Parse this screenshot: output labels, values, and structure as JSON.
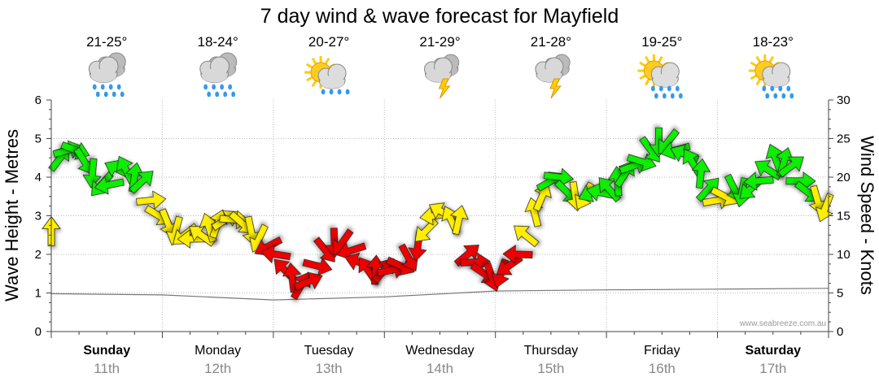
{
  "chart_data": {
    "type": "line",
    "title": "7 day wind & wave forecast for Mayfield",
    "ylabel": "Wave Height - Metres",
    "y2label": "Wind Speed - Knots",
    "ylim": [
      0,
      6
    ],
    "y2lim": [
      0,
      30
    ],
    "yticks": [
      "0",
      "1",
      "2",
      "3",
      "4",
      "5",
      "6"
    ],
    "y2ticks": [
      "0",
      "5",
      "10",
      "15",
      "20",
      "25",
      "30"
    ],
    "credit": "www.seabreeze.com.au",
    "days": [
      {
        "name": "Sunday",
        "date": "11th",
        "temp": "21-25°",
        "icon": "rain-cloud-icon",
        "bold": true
      },
      {
        "name": "Monday",
        "date": "12th",
        "temp": "18-24°",
        "icon": "rain-cloud-icon",
        "bold": false
      },
      {
        "name": "Tuesday",
        "date": "13th",
        "temp": "20-27°",
        "icon": "sun-cloud-shower-icon",
        "bold": false
      },
      {
        "name": "Wednesday",
        "date": "14th",
        "temp": "21-29°",
        "icon": "thunderstorm-icon",
        "bold": false
      },
      {
        "name": "Thursday",
        "date": "15th",
        "temp": "21-28°",
        "icon": "thunderstorm-icon",
        "bold": false
      },
      {
        "name": "Friday",
        "date": "16th",
        "temp": "19-25°",
        "icon": "sun-cloud-rain-icon",
        "bold": false
      },
      {
        "name": "Saturday",
        "date": "17th",
        "temp": "18-23°",
        "icon": "sun-cloud-rain-icon",
        "bold": true
      }
    ],
    "series": [
      {
        "name": "Wind Speed (knots)",
        "x_day": [
          0.0,
          0.08,
          0.15,
          0.22,
          0.3,
          0.37,
          0.45,
          0.52,
          0.6,
          0.67,
          0.75,
          0.82,
          0.9,
          0.97,
          1.05,
          1.12,
          1.2,
          1.27,
          1.35,
          1.42,
          1.5,
          1.57,
          1.65,
          1.72,
          1.8,
          1.87,
          1.95,
          2.02,
          2.1,
          2.17,
          2.25,
          2.32,
          2.4,
          2.47,
          2.55,
          2.62,
          2.7,
          2.77,
          2.85,
          2.92,
          3.0,
          3.07,
          3.15,
          3.22,
          3.3,
          3.37,
          3.45,
          3.52,
          3.6,
          3.67,
          3.75,
          3.82,
          3.9,
          3.97,
          4.05,
          4.12,
          4.2,
          4.27,
          4.35,
          4.42,
          4.5,
          4.57,
          4.65,
          4.72,
          4.8,
          4.87,
          4.95,
          5.02,
          5.1,
          5.17,
          5.25,
          5.32,
          5.4,
          5.47,
          5.55,
          5.62,
          5.7,
          5.77,
          5.85,
          5.92,
          6.0,
          6.07,
          6.15,
          6.22,
          6.3,
          6.37,
          6.45,
          6.52,
          6.6,
          6.67,
          6.75,
          6.82,
          6.9,
          6.97
        ],
        "knots": [
          13,
          22.5,
          23.5,
          23.5,
          22,
          20.5,
          19,
          19,
          21,
          21,
          20,
          19.5,
          17,
          15,
          14,
          13,
          12.5,
          12,
          12.5,
          13.5,
          14,
          14.5,
          14.5,
          14,
          13,
          12,
          11,
          10,
          8,
          7,
          6,
          6.5,
          8.5,
          10.5,
          11.5,
          11.5,
          10.5,
          9,
          8,
          8,
          8,
          8,
          8.5,
          9.5,
          11,
          13,
          15,
          15.5,
          14.5,
          14.5,
          10,
          9,
          7.5,
          7,
          7.5,
          8.5,
          10,
          12.5,
          15.5,
          17.5,
          19.5,
          20,
          18,
          17.5,
          17.5,
          18,
          18,
          18.5,
          19.5,
          20.5,
          21.5,
          22,
          23.5,
          24.5,
          24.5,
          23.5,
          23,
          22,
          20.5,
          18.5,
          17,
          17.5,
          18.5,
          18,
          18.5,
          19.5,
          21,
          22.5,
          22,
          21.5,
          19.5,
          18,
          17,
          16
        ]
      },
      {
        "name": "Wave Height (m)",
        "x_day": [
          0.0,
          1.0,
          2.0,
          3.0,
          4.0,
          5.0,
          6.0,
          7.0
        ],
        "metres": [
          0.98,
          0.95,
          0.82,
          0.9,
          1.05,
          1.08,
          1.1,
          1.12
        ]
      }
    ]
  }
}
